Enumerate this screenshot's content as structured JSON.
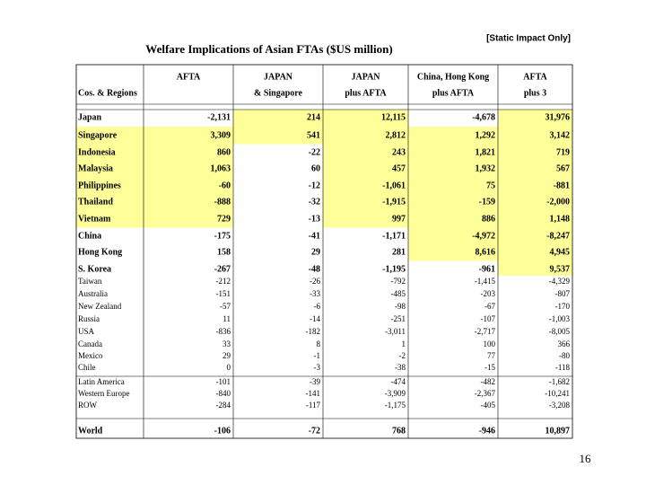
{
  "header": {
    "title": "Welfare Implications of Asian FTAs ($US million)",
    "note": "[Static Impact Only]"
  },
  "table": {
    "columns": [
      [
        "",
        "Cos. & Regions"
      ],
      [
        "AFTA",
        ""
      ],
      [
        "JAPAN",
        "& Singapore"
      ],
      [
        "JAPAN",
        "plus AFTA"
      ],
      [
        "China, Hong Kong",
        "plus AFTA"
      ],
      [
        "AFTA",
        "plus 3"
      ]
    ],
    "rows": [
      {
        "label": "Japan",
        "cells": [
          "-2,131",
          "214",
          "12,115",
          "-4,678",
          "31,976"
        ],
        "highlight": [
          2,
          3,
          5
        ]
      },
      {
        "label": "Singapore",
        "cells": [
          "3,309",
          "541",
          "2,812",
          "1,292",
          "3,142"
        ],
        "highlight": [
          0,
          1,
          2,
          3,
          4,
          5
        ]
      },
      {
        "label": "Indonesia",
        "cells": [
          "860",
          "-22",
          "243",
          "1,821",
          "719"
        ],
        "highlight": [
          0,
          1,
          3,
          4,
          5
        ]
      },
      {
        "label": "Malaysia",
        "cells": [
          "1,063",
          "60",
          "457",
          "1,932",
          "567"
        ],
        "highlight": [
          0,
          1,
          3,
          4,
          5
        ]
      },
      {
        "label": "Philippines",
        "cells": [
          "-60",
          "-12",
          "-1,061",
          "75",
          "-881"
        ],
        "highlight": [
          0,
          1,
          3,
          4,
          5
        ]
      },
      {
        "label": "Thailand",
        "cells": [
          "-888",
          "-32",
          "-1,915",
          "-159",
          "-2,000"
        ],
        "highlight": [
          0,
          1,
          3,
          4,
          5
        ]
      },
      {
        "label": "Vietnam",
        "cells": [
          "729",
          "-13",
          "997",
          "886",
          "1,148"
        ],
        "highlight": [
          0,
          1,
          3,
          4,
          5
        ]
      },
      {
        "label": "China",
        "cells": [
          "-175",
          "-41",
          "-1,171",
          "-4,972",
          "-8,247"
        ],
        "highlight": [
          4,
          5
        ]
      },
      {
        "label": "Hong Kong",
        "cells": [
          "158",
          "29",
          "281",
          "8,616",
          "4,945"
        ],
        "highlight": [
          4,
          5
        ]
      },
      {
        "label": "S. Korea",
        "cells": [
          "-267",
          "-48",
          "-1,195",
          "-961",
          "9,537"
        ],
        "highlight": [
          5
        ]
      },
      {
        "label": "Taiwan",
        "cells": [
          "-212",
          "-26",
          "-792",
          "-1,415",
          "-4,329"
        ],
        "highlight": []
      },
      {
        "label": "Australia",
        "cells": [
          "-151",
          "-33",
          "-485",
          "-203",
          "-807"
        ],
        "highlight": []
      },
      {
        "label": "New Zealand",
        "cells": [
          "-57",
          "-6",
          "-98",
          "-67",
          "-170"
        ],
        "highlight": []
      },
      {
        "label": "Russia",
        "cells": [
          "11",
          "-14",
          "-251",
          "-107",
          "-1,003"
        ],
        "highlight": []
      },
      {
        "label": "USA",
        "cells": [
          "-836",
          "-182",
          "-3,011",
          "-2,717",
          "-8,005"
        ],
        "highlight": []
      },
      {
        "label": "Canada",
        "cells": [
          "33",
          "8",
          "1",
          "100",
          "366"
        ],
        "highlight": []
      },
      {
        "label": "Mexico",
        "cells": [
          "29",
          "-1",
          "-2",
          "77",
          "-80"
        ],
        "highlight": []
      },
      {
        "label": "Chile",
        "cells": [
          "0",
          "-3",
          "-38",
          "-15",
          "-118"
        ],
        "highlight": []
      },
      {
        "label": "Latin America",
        "cells": [
          "-101",
          "-39",
          "-474",
          "-482",
          "-1,682"
        ],
        "highlight": []
      },
      {
        "label": "Western Europe",
        "cells": [
          "-840",
          "-141",
          "-3,909",
          "-2,367",
          "-10,241"
        ],
        "highlight": []
      },
      {
        "label": "ROW",
        "cells": [
          "-284",
          "-117",
          "-1,175",
          "-405",
          "-3,208"
        ],
        "highlight": []
      },
      {
        "label": "World",
        "cells": [
          "-106",
          "-72",
          "768",
          "-946",
          "10,897"
        ],
        "highlight": []
      }
    ]
  },
  "page_number": "16"
}
